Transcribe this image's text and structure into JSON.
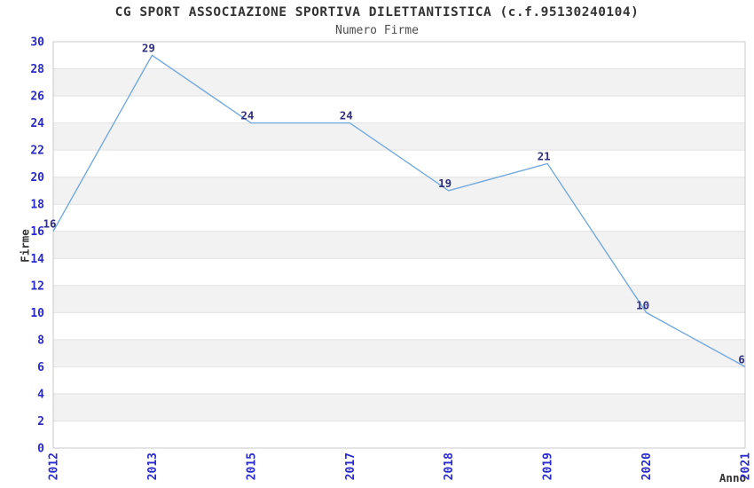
{
  "chart_data": {
    "type": "line",
    "title": "CG SPORT ASSOCIAZIONE SPORTIVA DILETTANTISTICA (c.f.95130240104)",
    "subtitle": "Numero Firme",
    "xlabel": "Anno",
    "ylabel": "Firme",
    "categories": [
      "2012",
      "2013",
      "2015",
      "2017",
      "2018",
      "2019",
      "2020",
      "2021"
    ],
    "series": [
      {
        "name": "Numero Firme",
        "values": [
          16,
          29,
          24,
          24,
          19,
          21,
          10,
          6
        ]
      }
    ],
    "point_labels": [
      "16",
      "29",
      "24",
      "24",
      "19",
      "21",
      "10",
      "6"
    ],
    "ylim": [
      0,
      30
    ],
    "ytick_step": 2,
    "ytick_labels": [
      "0",
      "2",
      "4",
      "6",
      "8",
      "10",
      "12",
      "14",
      "16",
      "18",
      "20",
      "22",
      "24",
      "26",
      "28",
      "30"
    ],
    "grid": "horizontal-bands-alternating",
    "legend_position": "none",
    "x_tick_rotation_deg": -90
  },
  "colors": {
    "line": "#74aadd",
    "tick_label": "#2a2acc",
    "data_label": "#31317f",
    "band_gray": "#f2f2f2",
    "band_white": "#ffffff",
    "grid_line": "#e2e2e2",
    "plot_border": "#c9c9c9",
    "title_text": "#333333"
  }
}
